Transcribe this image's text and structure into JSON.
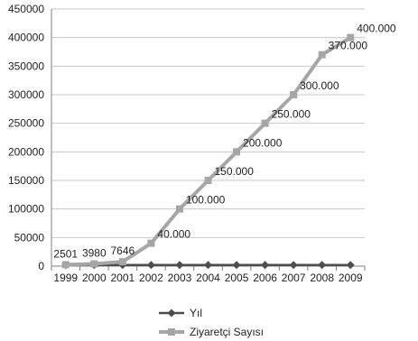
{
  "chart_data": {
    "type": "line",
    "x": [
      "1999",
      "2000",
      "2001",
      "2002",
      "2003",
      "2004",
      "2005",
      "2006",
      "2007",
      "2008",
      "2009"
    ],
    "ylim": [
      0,
      450000
    ],
    "yticks": [
      "0",
      "50000",
      "100000",
      "150000",
      "200000",
      "250000",
      "300000",
      "350000",
      "400000",
      "450000"
    ],
    "grid": true,
    "legend_position": "bottom",
    "series": [
      {
        "name": "Yıl",
        "color": "#4d4d4d",
        "marker": "diamond",
        "values": [
          1999,
          2000,
          2001,
          2002,
          2003,
          2004,
          2005,
          2006,
          2007,
          2008,
          2009
        ],
        "labels": []
      },
      {
        "name": "Ziyaretçi Sayısı",
        "color": "#a6a6a6",
        "marker": "square",
        "values": [
          2501,
          3980,
          7646,
          40000,
          100000,
          150000,
          200000,
          250000,
          300000,
          370000,
          400000
        ],
        "labels": [
          "2501",
          "3980",
          "7646",
          "40.000",
          "100.000",
          "150.000",
          "200.000",
          "250.000",
          "300.000",
          "370.000",
          "400.000"
        ]
      }
    ]
  }
}
